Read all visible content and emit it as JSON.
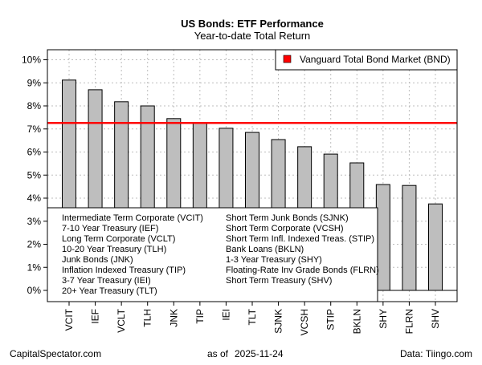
{
  "chart_data": {
    "type": "bar",
    "title": "US Bonds: ETF Performance",
    "subtitle": "Year-to-date Total Return",
    "categories": [
      "VCIT",
      "IEF",
      "VCLT",
      "TLH",
      "JNK",
      "TIP",
      "IEI",
      "TLT",
      "SJNK",
      "VCSH",
      "STIP",
      "BKLN",
      "SHY",
      "FLRN",
      "SHV"
    ],
    "values": [
      9.12,
      8.7,
      8.18,
      8.0,
      7.45,
      7.27,
      7.03,
      6.85,
      6.54,
      6.23,
      5.91,
      5.53,
      4.59,
      4.55,
      3.75
    ],
    "ylim": [
      -0.5,
      10.5
    ],
    "yticks": [
      0,
      1,
      2,
      3,
      4,
      5,
      6,
      7,
      8,
      9,
      10
    ],
    "ytick_format": "%",
    "grid": true,
    "bar_color": "#bebebe",
    "reference_line": {
      "name": "Vanguard Total Bond Market (BND)",
      "value": 7.26,
      "color": "#ff0000"
    },
    "reference_legend_placement": "top-right",
    "ticker_legend_placement": "bottom-left",
    "ticker_legend": [
      "Intermediate Term Corporate (VCIT)",
      "7-10 Year Treasury (IEF)",
      "Long Term Corporate (VCLT)",
      "10-20 Year Treasury (TLH)",
      "Junk Bonds (JNK)",
      "Inflation Indexed Treasury (TIP)",
      "3-7 Year Treasury (IEI)",
      "20+ Year Treasury (TLT)",
      "Short Term Junk Bonds (SJNK)",
      "Short Term Corporate (VCSH)",
      "Short Term Infl. Indexed Treas. (STIP)",
      "Bank Loans (BKLN)",
      "1-3 Year Treasury (SHY)",
      "Floating-Rate Inv Grade Bonds (FLRN)",
      "Short Term Treasury (SHV)"
    ]
  },
  "footer": {
    "source_left": "CapitalSpectator.com",
    "as_of_label": "as of",
    "as_of_date": "2025-11-24",
    "source_right": "Data: Tiingo.com"
  }
}
